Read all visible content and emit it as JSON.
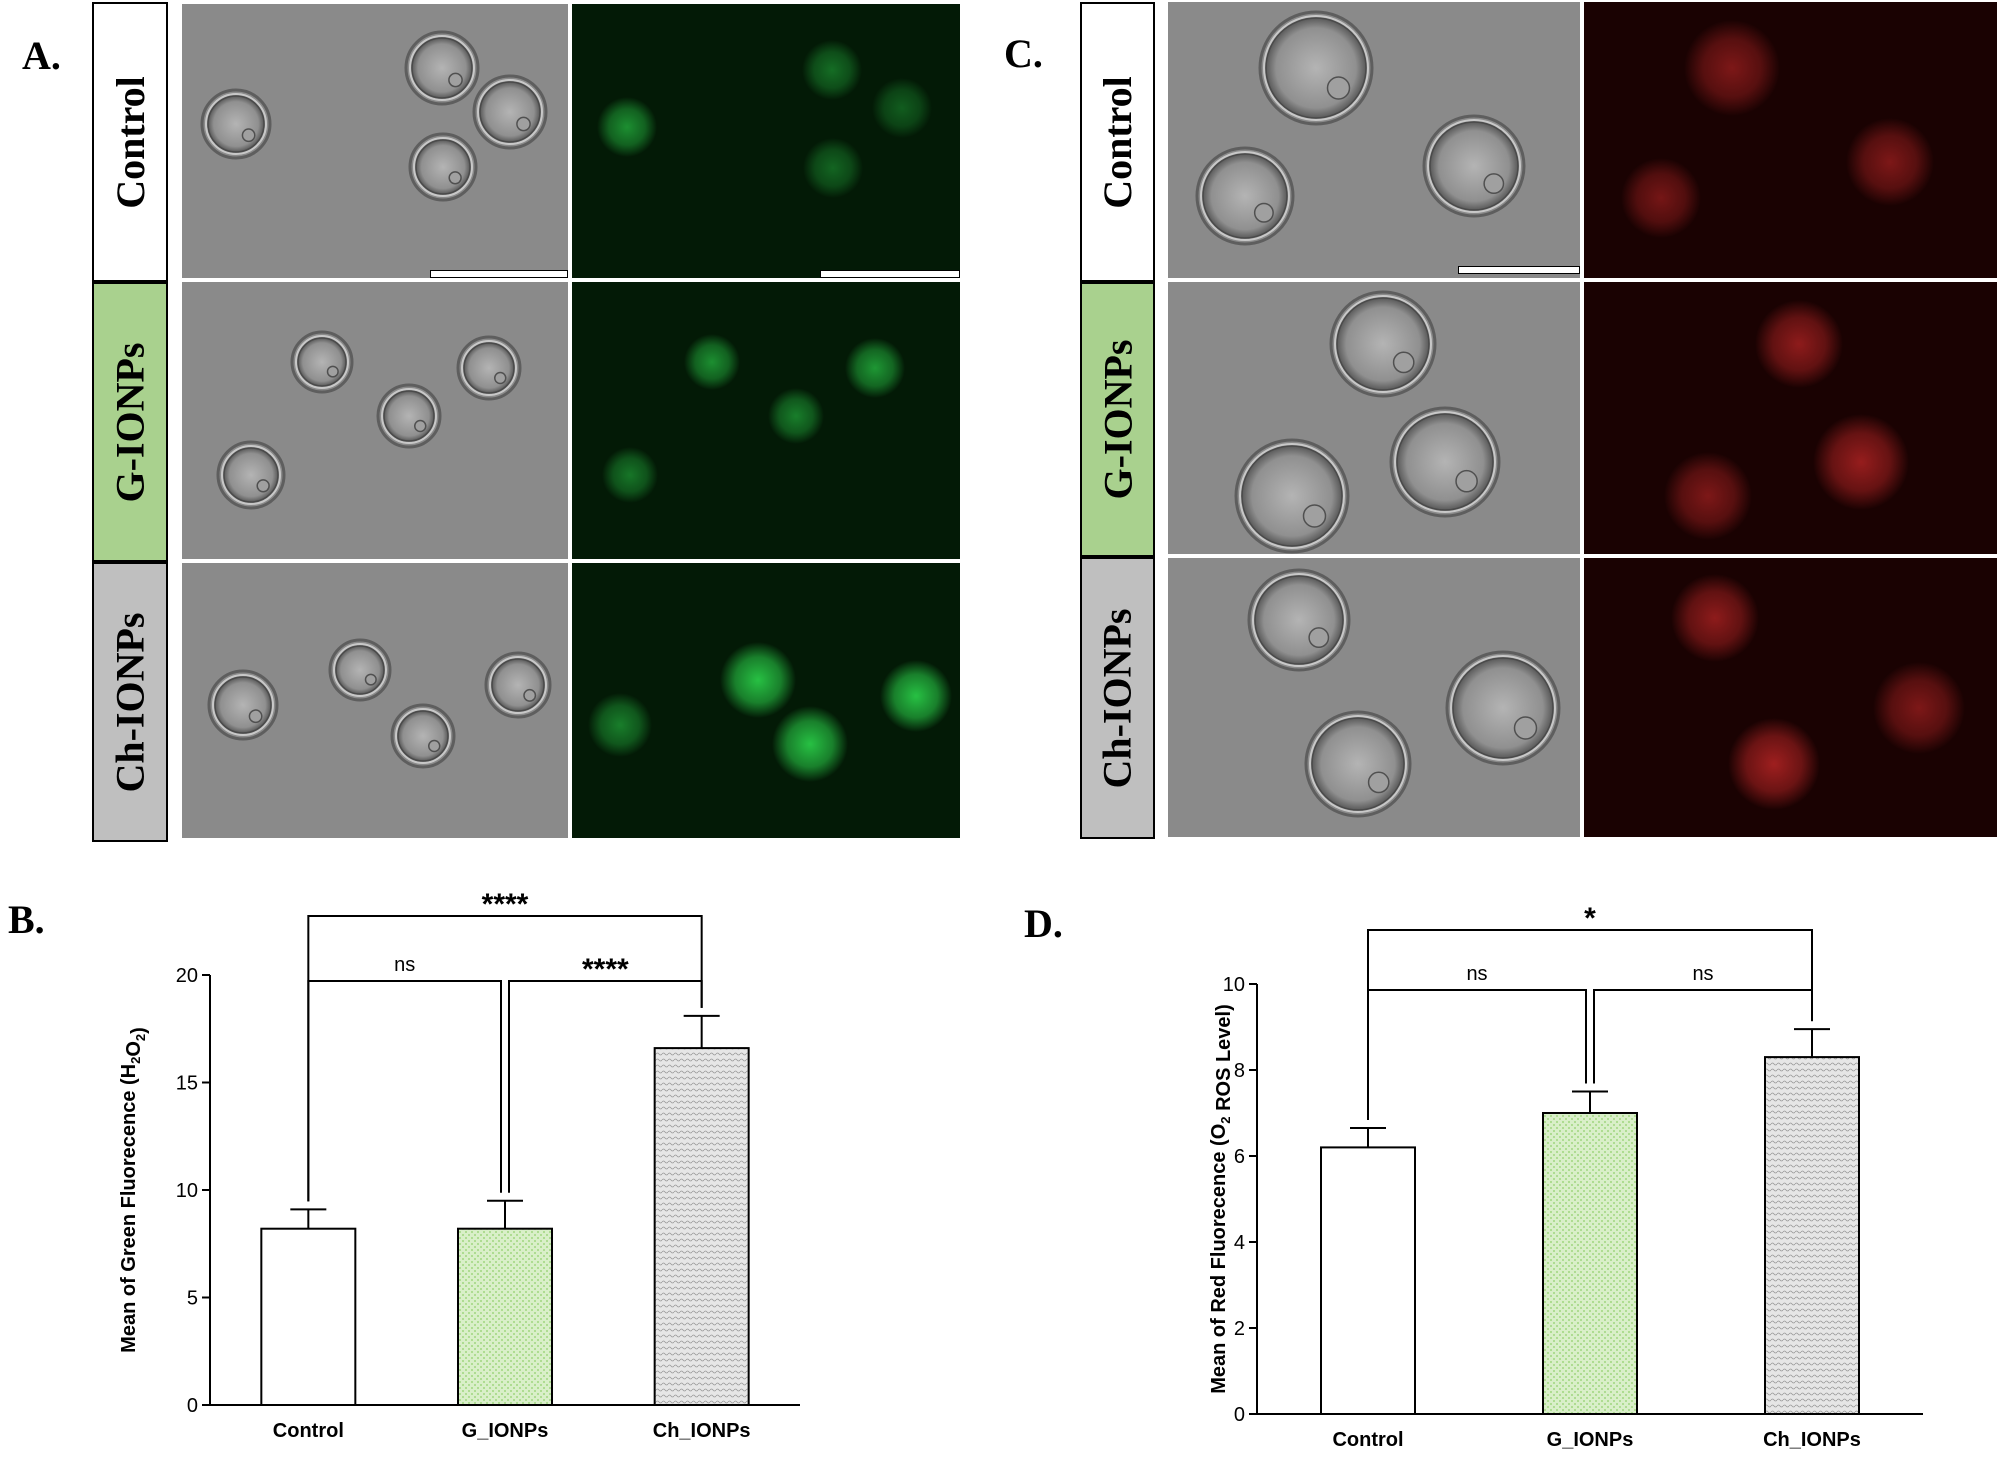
{
  "panelA": {
    "letter": "A.",
    "rows": [
      {
        "label": "Control",
        "bg": "#ffffff"
      },
      {
        "label": "G-IONPs",
        "bg": "#a9d18e"
      },
      {
        "label": "Ch-IONPs",
        "bg": "#bfbfbf"
      }
    ],
    "fluor_color": "#2bd34a"
  },
  "panelC": {
    "letter": "C.",
    "rows": [
      {
        "label": "Control",
        "bg": "#ffffff"
      },
      {
        "label": "G-IONPs",
        "bg": "#a9d18e"
      },
      {
        "label": "Ch-IONPs",
        "bg": "#bfbfbf"
      }
    ],
    "fluor_color": "#d22a2a"
  },
  "chart_data": [
    {
      "panel": "B.",
      "type": "bar",
      "title": "",
      "xlabel": "",
      "ylabel": "Mean of Green Fluorecence (H2O2)",
      "categories": [
        "Control",
        "G_IONPs",
        "Ch_IONPs"
      ],
      "values": [
        8.2,
        8.2,
        16.6
      ],
      "errors": [
        0.9,
        1.3,
        1.5
      ],
      "ylim": [
        0,
        20
      ],
      "yticks": [
        0,
        5,
        10,
        15,
        20
      ],
      "bar_fills": [
        "#ffffff",
        "#d9efc9",
        "#e6e6e6"
      ],
      "significance": [
        {
          "from": 0,
          "to": 2,
          "label": "****"
        },
        {
          "from": 0,
          "to": 1,
          "label": "ns"
        },
        {
          "from": 1,
          "to": 2,
          "label": "****"
        }
      ]
    },
    {
      "panel": "D.",
      "type": "bar",
      "title": "",
      "xlabel": "",
      "ylabel": "Mean of Red Fluorecence (O2 ROS Level)",
      "categories": [
        "Control",
        "G_IONPs",
        "Ch_IONPs"
      ],
      "values": [
        6.2,
        7.0,
        8.3
      ],
      "errors": [
        0.45,
        0.5,
        0.65
      ],
      "ylim": [
        0,
        10
      ],
      "yticks": [
        0,
        2,
        4,
        6,
        8,
        10
      ],
      "bar_fills": [
        "#ffffff",
        "#d9efc9",
        "#e6e6e6"
      ],
      "significance": [
        {
          "from": 0,
          "to": 2,
          "label": "*"
        },
        {
          "from": 0,
          "to": 1,
          "label": "ns"
        },
        {
          "from": 1,
          "to": 2,
          "label": "ns"
        }
      ]
    }
  ]
}
